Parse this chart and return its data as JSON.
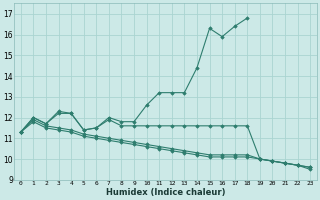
{
  "xlabel": "Humidex (Indice chaleur)",
  "background_color": "#cce9e7",
  "grid_color": "#aad4d1",
  "line_color": "#2e7d6e",
  "xlim": [
    -0.5,
    23.5
  ],
  "ylim": [
    9,
    17.5
  ],
  "yticks": [
    9,
    10,
    11,
    12,
    13,
    14,
    15,
    16,
    17
  ],
  "xticks": [
    0,
    1,
    2,
    3,
    4,
    5,
    6,
    7,
    8,
    9,
    10,
    11,
    12,
    13,
    14,
    15,
    16,
    17,
    18,
    19,
    20,
    21,
    22,
    23
  ],
  "series": [
    {
      "x": [
        0,
        1,
        2,
        3,
        4,
        5,
        6,
        7,
        8,
        9,
        10,
        11,
        12,
        13,
        14,
        15,
        16,
        17,
        18
      ],
      "y": [
        11.3,
        12.0,
        11.7,
        12.3,
        12.2,
        11.4,
        11.5,
        12.0,
        11.8,
        11.8,
        12.6,
        13.2,
        13.2,
        13.2,
        14.4,
        16.3,
        15.9,
        16.4,
        16.8
      ]
    },
    {
      "x": [
        0,
        1,
        2,
        3,
        4,
        5,
        6,
        7,
        8,
        9,
        10,
        11,
        12,
        13,
        14,
        15,
        16,
        17,
        18,
        19,
        20,
        21,
        22,
        23
      ],
      "y": [
        11.3,
        12.0,
        11.7,
        12.2,
        12.2,
        11.4,
        11.5,
        11.9,
        11.6,
        11.6,
        11.6,
        11.6,
        11.6,
        11.6,
        11.6,
        11.6,
        11.6,
        11.6,
        11.6,
        10.0,
        9.9,
        9.8,
        9.7,
        9.6
      ]
    },
    {
      "x": [
        0,
        1,
        2,
        3,
        4,
        5,
        6,
        7,
        8,
        9,
        10,
        11,
        12,
        13,
        14,
        15,
        16,
        17,
        18,
        19,
        20,
        21,
        22,
        23
      ],
      "y": [
        11.3,
        11.8,
        11.5,
        11.4,
        11.3,
        11.1,
        11.0,
        10.9,
        10.8,
        10.7,
        10.6,
        10.5,
        10.4,
        10.3,
        10.2,
        10.1,
        10.1,
        10.1,
        10.1,
        10.0,
        9.9,
        9.8,
        9.7,
        9.6
      ]
    },
    {
      "x": [
        0,
        1,
        2,
        3,
        4,
        5,
        6,
        7,
        8,
        9,
        10,
        11,
        12,
        13,
        14,
        15,
        16,
        17,
        18,
        19,
        20,
        21,
        22,
        23
      ],
      "y": [
        11.3,
        11.9,
        11.6,
        11.5,
        11.4,
        11.2,
        11.1,
        11.0,
        10.9,
        10.8,
        10.7,
        10.6,
        10.5,
        10.4,
        10.3,
        10.2,
        10.2,
        10.2,
        10.2,
        10.0,
        9.9,
        9.8,
        9.7,
        9.5
      ]
    }
  ]
}
